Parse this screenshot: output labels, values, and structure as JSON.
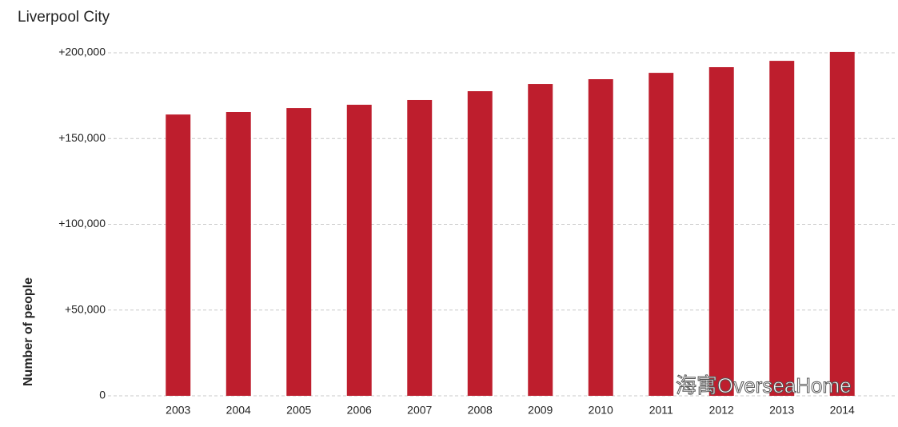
{
  "chart_data": {
    "type": "bar",
    "title": "Liverpool City",
    "y_label": "Number of people",
    "annotation": "海寓OverseaHome",
    "categories": [
      "2003",
      "2004",
      "2005",
      "2006",
      "2007",
      "2008",
      "2009",
      "2010",
      "2011",
      "2012",
      "2013",
      "2014"
    ],
    "values": [
      164000,
      165500,
      167800,
      169700,
      172500,
      177600,
      181800,
      184600,
      188300,
      191600,
      195300,
      200500
    ],
    "color": "#be1e2d",
    "ylim": [
      0,
      200000
    ],
    "yticks": [
      0,
      {
        "value": 50000,
        "label": "+50,000"
      },
      {
        "value": 100000,
        "label": "+100,000"
      },
      {
        "value": 150000,
        "label": "+150,000"
      },
      {
        "value": 200000,
        "label": "+200,000"
      }
    ],
    "grid": true
  }
}
